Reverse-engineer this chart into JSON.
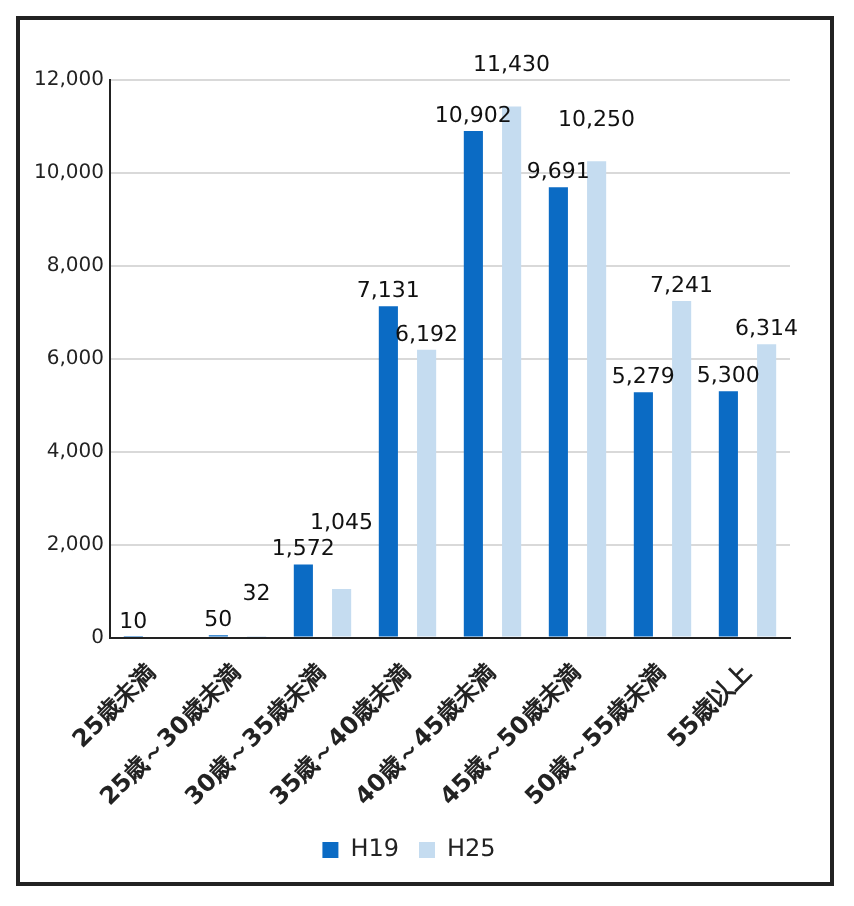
{
  "chart_data": {
    "type": "bar",
    "categories": [
      "25歳未満",
      "25歳～30歳未満",
      "30歳～35歳未満",
      "35歳～40歳未満",
      "40歳～45歳未満",
      "45歳～50歳未満",
      "50歳～55歳未満",
      "55歳以上"
    ],
    "series": [
      {
        "name": "H19",
        "color": "#0b6bc4",
        "values": [
          10,
          50,
          1572,
          7131,
          10902,
          9691,
          5279,
          5300
        ],
        "value_labels": [
          "10",
          "50",
          "1,572",
          "7,131",
          "10,902",
          "9,691",
          "5,279",
          "5,300"
        ]
      },
      {
        "name": "H25",
        "color": "#c5dcf0",
        "values": [
          null,
          32,
          1045,
          6192,
          11430,
          10250,
          7241,
          6314
        ],
        "value_labels": [
          null,
          "32",
          "1,045",
          "6,192",
          "11,430",
          "10,250",
          "7,241",
          "6,314"
        ]
      }
    ],
    "ylim": [
      0,
      12000
    ],
    "yticks": [
      {
        "value": 0,
        "label": "0"
      },
      {
        "value": 2000,
        "label": "2,000"
      },
      {
        "value": 4000,
        "label": "4,000"
      },
      {
        "value": 6000,
        "label": "6,000"
      },
      {
        "value": 8000,
        "label": "8,000"
      },
      {
        "value": 10000,
        "label": "10,000"
      },
      {
        "value": 12000,
        "label": "12,000"
      }
    ],
    "grid": "y",
    "legend": "bottom"
  }
}
